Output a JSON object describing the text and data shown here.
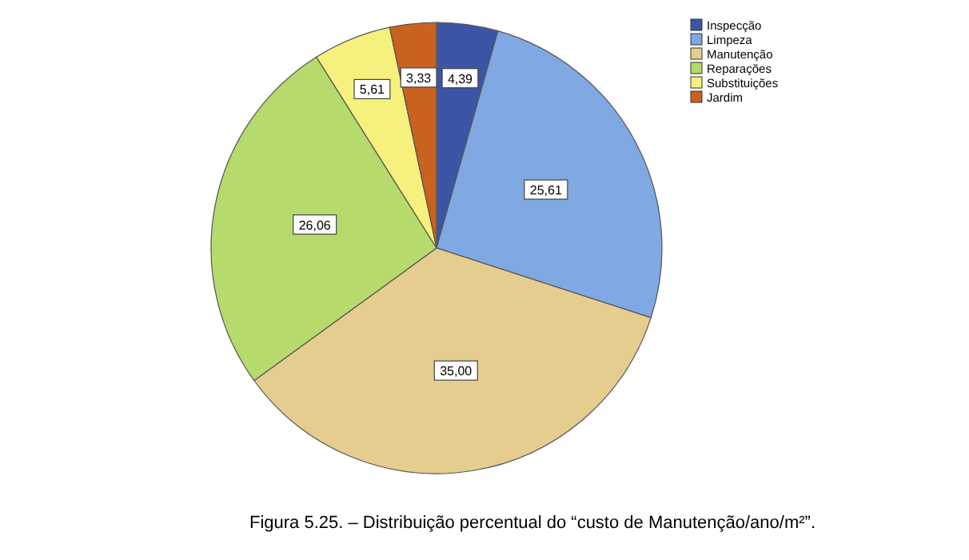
{
  "chart_data": {
    "type": "pie",
    "categories": [
      "Inspecção",
      "Limpeza",
      "Manutenção",
      "Reparações",
      "Substituições",
      "Jardim"
    ],
    "values": [
      4.39,
      25.61,
      35.0,
      26.06,
      5.61,
      3.33
    ],
    "value_labels": [
      "4,39",
      "25,61",
      "35,00",
      "26,06",
      "5,61",
      "3,33"
    ],
    "colors": [
      "#3c55a6",
      "#80a8e2",
      "#e5cd8f",
      "#b6da6c",
      "#f6f17c",
      "#c9621f"
    ],
    "legend": "top right",
    "annotations": [
      "Figura 5.25. – Distribuição percentual do “custo de Manutenção/ano/m²”."
    ]
  }
}
